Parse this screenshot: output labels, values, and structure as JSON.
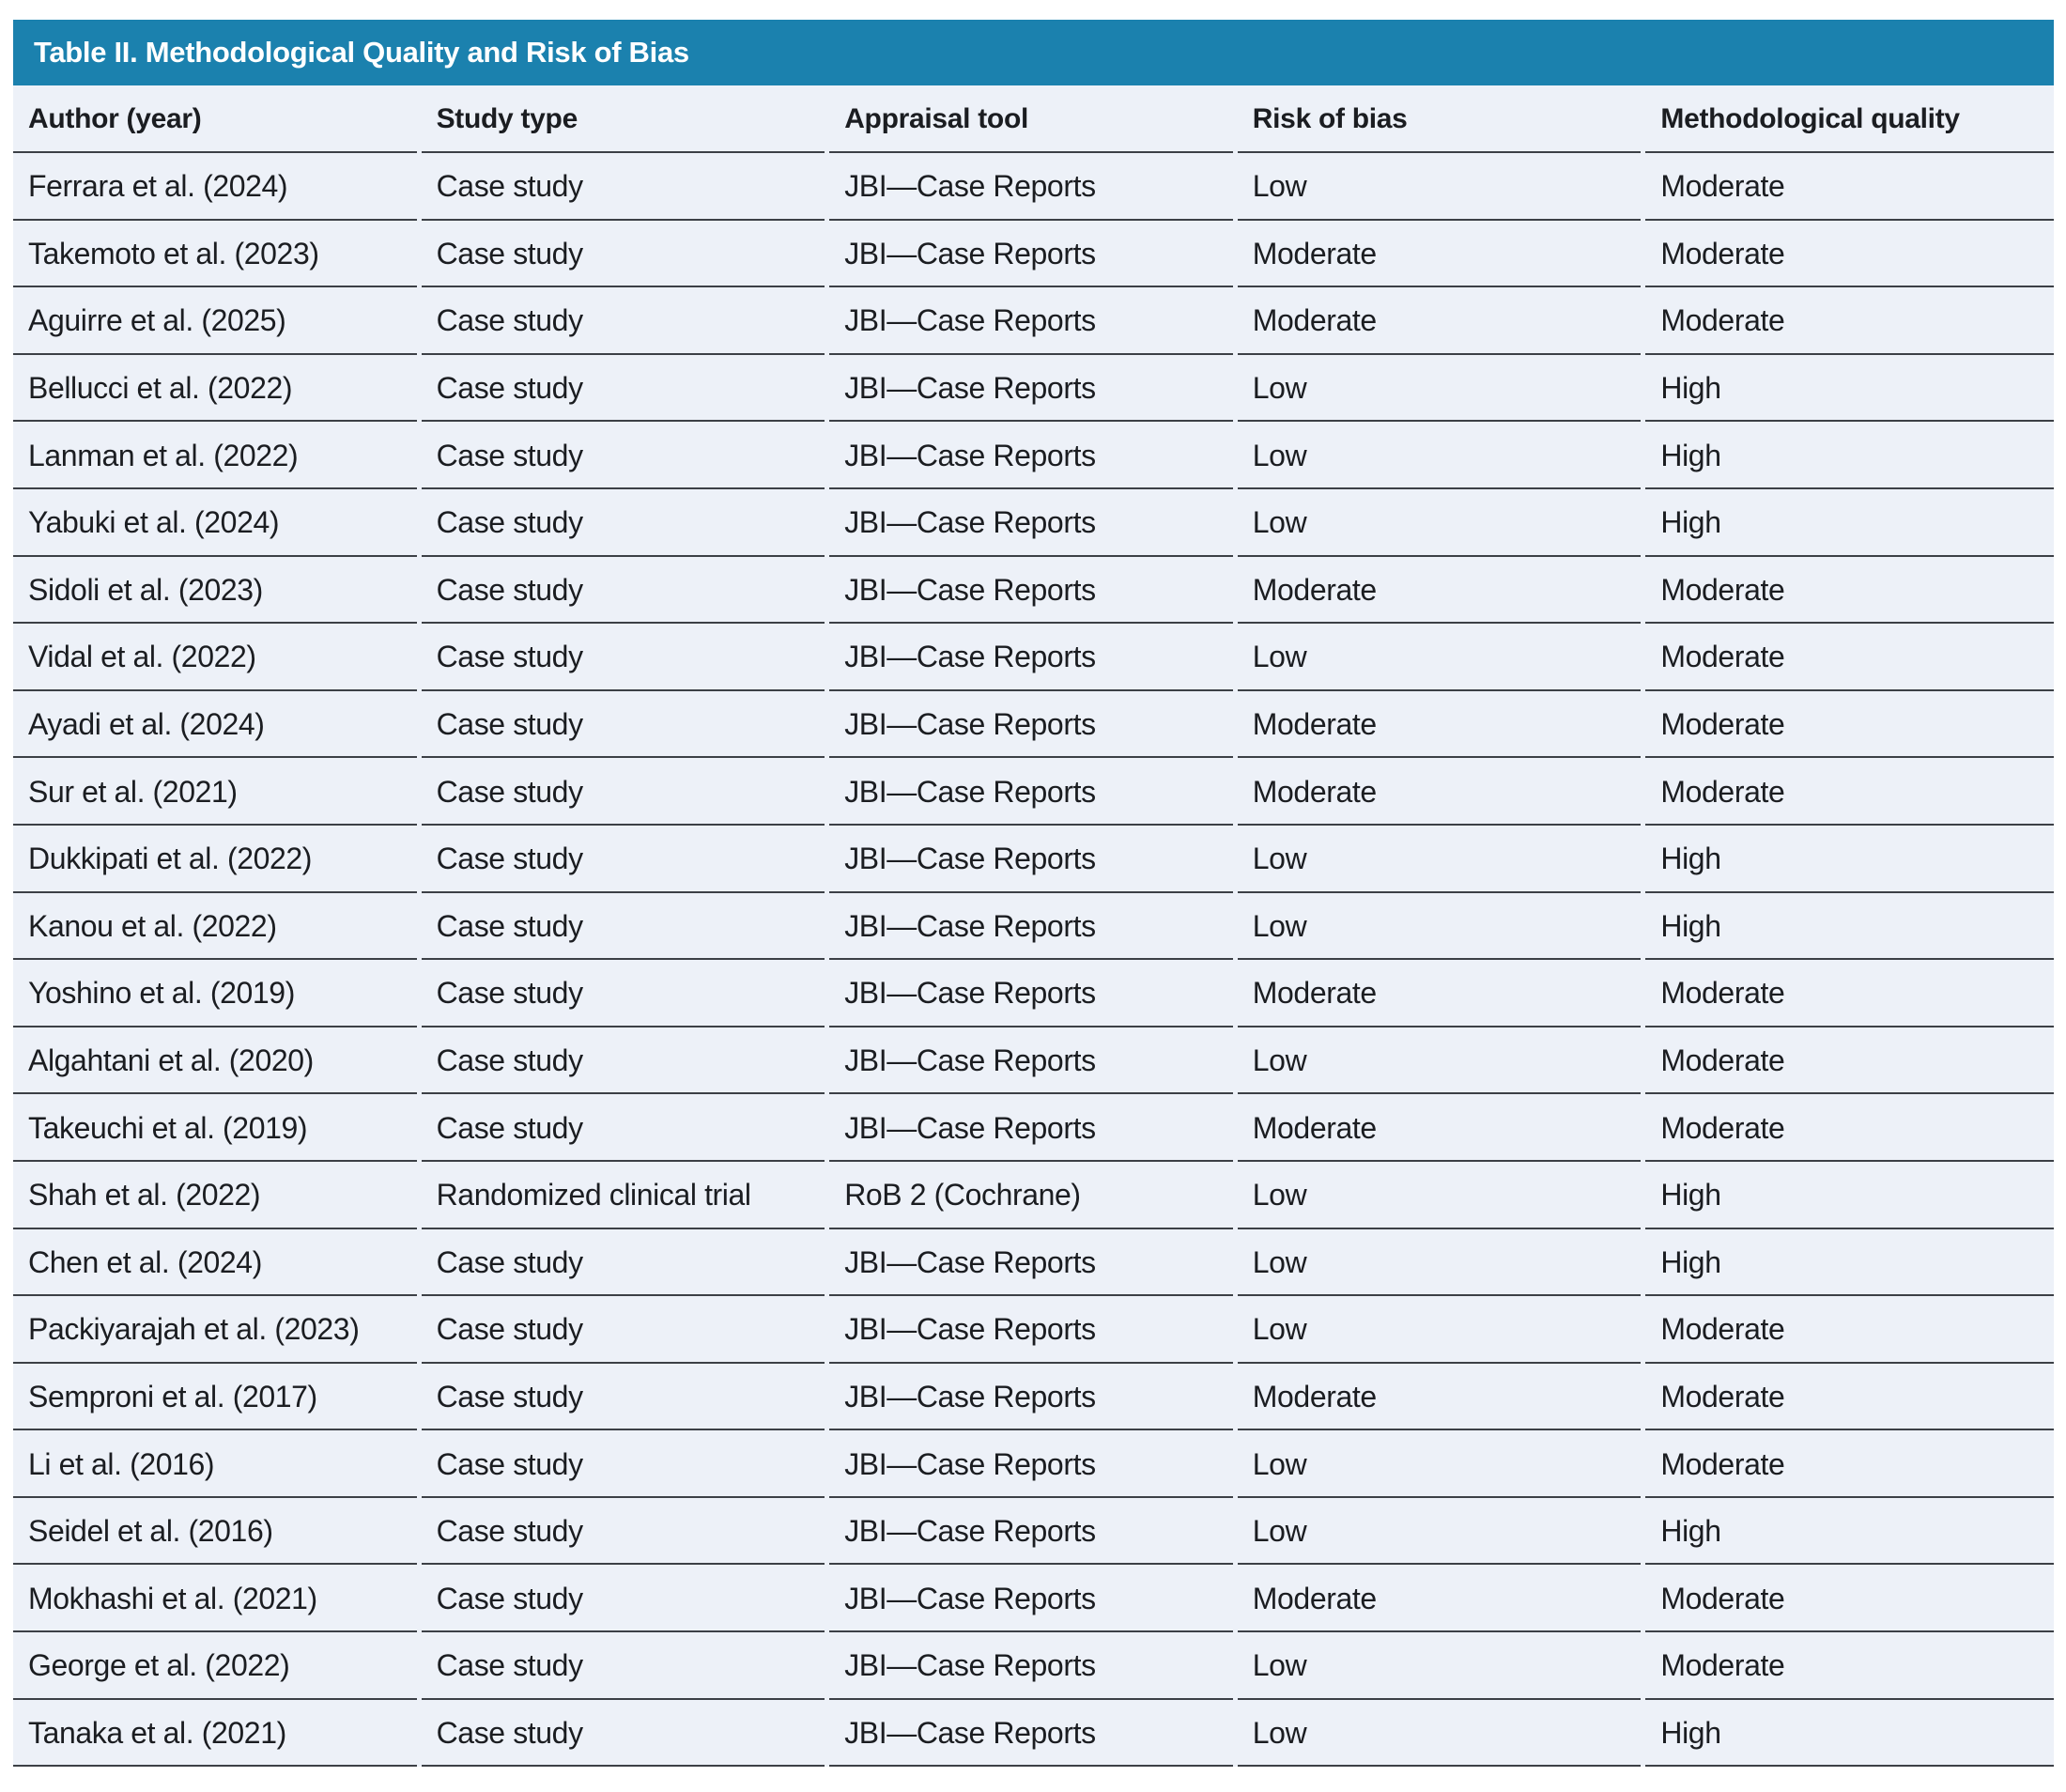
{
  "table": {
    "title": "Table II. Methodological Quality and Risk of Bias",
    "columns": [
      "Author (year)",
      "Study type",
      "Appraisal tool",
      "Risk of bias",
      "Methodological quality"
    ],
    "column_keys": [
      "author-year",
      "study-type",
      "appraisal-tool",
      "risk-of-bias",
      "methodological-quality"
    ],
    "rows": [
      [
        "Ferrara et al. (2024)",
        "Case study",
        "JBI—Case Reports",
        "Low",
        "Moderate"
      ],
      [
        "Takemoto et al. (2023)",
        "Case study",
        "JBI—Case Reports",
        "Moderate",
        "Moderate"
      ],
      [
        "Aguirre et al. (2025)",
        "Case study",
        "JBI—Case Reports",
        "Moderate",
        "Moderate"
      ],
      [
        "Bellucci et al. (2022)",
        "Case study",
        "JBI—Case Reports",
        "Low",
        "High"
      ],
      [
        "Lanman et al. (2022)",
        "Case study",
        "JBI—Case Reports",
        "Low",
        "High"
      ],
      [
        "Yabuki et al. (2024)",
        "Case study",
        "JBI—Case Reports",
        "Low",
        "High"
      ],
      [
        "Sidoli et al. (2023)",
        "Case study",
        "JBI—Case Reports",
        "Moderate",
        "Moderate"
      ],
      [
        "Vidal et al. (2022)",
        "Case study",
        "JBI—Case Reports",
        "Low",
        "Moderate"
      ],
      [
        "Ayadi et al. (2024)",
        "Case study",
        "JBI—Case Reports",
        "Moderate",
        "Moderate"
      ],
      [
        "Sur et al. (2021)",
        "Case study",
        "JBI—Case Reports",
        "Moderate",
        "Moderate"
      ],
      [
        "Dukkipati et al. (2022)",
        "Case study",
        "JBI—Case Reports",
        "Low",
        "High"
      ],
      [
        "Kanou et al. (2022)",
        "Case study",
        "JBI—Case Reports",
        "Low",
        "High"
      ],
      [
        "Yoshino et al. (2019)",
        "Case study",
        "JBI—Case Reports",
        "Moderate",
        "Moderate"
      ],
      [
        "Algahtani et al. (2020)",
        "Case study",
        "JBI—Case Reports",
        "Low",
        "Moderate"
      ],
      [
        "Takeuchi et al. (2019)",
        "Case study",
        "JBI—Case Reports",
        "Moderate",
        "Moderate"
      ],
      [
        "Shah et al. (2022)",
        "Randomized clinical trial",
        "RoB 2 (Cochrane)",
        "Low",
        "High"
      ],
      [
        "Chen et al. (2024)",
        "Case study",
        "JBI—Case Reports",
        "Low",
        "High"
      ],
      [
        "Packiyarajah et al. (2023)",
        "Case study",
        "JBI—Case Reports",
        "Low",
        "Moderate"
      ],
      [
        "Semproni et al. (2017)",
        "Case study",
        "JBI—Case Reports",
        "Moderate",
        "Moderate"
      ],
      [
        "Li et al. (2016)",
        "Case study",
        "JBI—Case Reports",
        "Low",
        "Moderate"
      ],
      [
        "Seidel et al. (2016)",
        "Case study",
        "JBI—Case Reports",
        "Low",
        "High"
      ],
      [
        "Mokhashi et al. (2021)",
        "Case study",
        "JBI—Case Reports",
        "Moderate",
        "Moderate"
      ],
      [
        "George et al. (2022)",
        "Case study",
        "JBI—Case Reports",
        "Low",
        "Moderate"
      ],
      [
        "Tanaka et al. (2021)",
        "Case study",
        "JBI—Case Reports",
        "Low",
        "High"
      ]
    ],
    "colors": {
      "title_bar_bg": "#1b81ae",
      "title_bar_text": "#ffffff",
      "row_bg": "#edf1f8",
      "divider": "#3c4046",
      "body_text": "#1b1d21"
    }
  }
}
